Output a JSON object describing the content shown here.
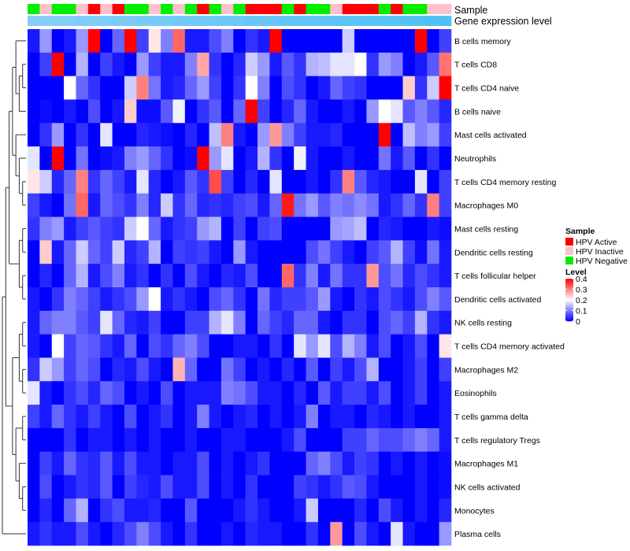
{
  "chart_data": {
    "type": "heatmap",
    "title": "",
    "annotation_labels": [
      "Sample",
      "Gene expression level"
    ],
    "rows": [
      "B cells memory",
      "T cells CD8",
      "T cells CD4 naive",
      "B cells naive",
      "Mast cells activated",
      "Neutrophils",
      "T cells CD4 memory resting",
      "Macrophages M0",
      "Mast cells resting",
      "Dendritic cells resting",
      "T cells follicular helper",
      "Dendritic cells activated",
      "NK cells resting",
      "T cells CD4 memory activated",
      "Macrophages M2",
      "Eosinophils",
      "T cells gamma delta",
      "T cells regulatory  Tregs",
      "Macrophages M1",
      "NK cells activated",
      "Monocytes",
      "Plasma cells"
    ],
    "sample_groups": [
      "Neg",
      "Ina",
      "Neg",
      "Neg",
      "Ina",
      "Act",
      "Ina",
      "Act",
      "Neg",
      "Neg",
      "Ina",
      "Neg",
      "Ina",
      "Neg",
      "Act",
      "Neg",
      "Ina",
      "Neg",
      "Act",
      "Act",
      "Act",
      "Neg",
      "Act",
      "Neg",
      "Neg",
      "Ina",
      "Act",
      "Act",
      "Act",
      "Neg",
      "Act",
      "Neg",
      "Neg",
      "Ina",
      "Ina"
    ],
    "values": [
      [
        0.02,
        0.12,
        0.0,
        0.02,
        0.12,
        0.41,
        0.0,
        0.08,
        0.44,
        0.05,
        0.22,
        0.1,
        0.32,
        0.02,
        0.02,
        0.06,
        0.1,
        0.0,
        0.04,
        0.02,
        0.42,
        0.0,
        0.0,
        0.0,
        0.0,
        0.0,
        0.16,
        0.0,
        0.0,
        0.0,
        0.0,
        0.0,
        0.4,
        0.0,
        0.05
      ],
      [
        0.0,
        0.05,
        0.41,
        0.0,
        0.14,
        0.0,
        0.05,
        0.02,
        0.0,
        0.12,
        0.05,
        0.02,
        0.02,
        0.1,
        0.27,
        0.04,
        0.0,
        0.03,
        0.16,
        0.12,
        0.02,
        0.07,
        0.04,
        0.14,
        0.15,
        0.18,
        0.18,
        0.2,
        0.04,
        0.12,
        0.1,
        0.0,
        0.02,
        0.07,
        0.31
      ],
      [
        0.0,
        0.0,
        0.0,
        0.2,
        0.08,
        0.04,
        0.0,
        0.0,
        0.16,
        0.3,
        0.09,
        0.02,
        0.03,
        0.08,
        0.12,
        0.05,
        0.0,
        0.04,
        0.2,
        0.1,
        0.0,
        0.06,
        0.04,
        0.0,
        0.02,
        0.08,
        0.05,
        0.04,
        0.0,
        0.0,
        0.0,
        0.24,
        0.04,
        0.16,
        0.41
      ],
      [
        0.0,
        0.01,
        0.0,
        0.02,
        0.0,
        0.06,
        0.0,
        0.02,
        0.24,
        0.01,
        0.01,
        0.07,
        0.19,
        0.0,
        0.04,
        0.07,
        0.0,
        0.08,
        0.4,
        0.05,
        0.0,
        0.03,
        0.08,
        0.02,
        0.0,
        0.0,
        0.02,
        0.0,
        0.12,
        0.2,
        0.18,
        0.07,
        0.1,
        0.07,
        0.03
      ],
      [
        0.0,
        0.04,
        0.12,
        0.0,
        0.04,
        0.0,
        0.18,
        0.0,
        0.0,
        0.03,
        0.02,
        0.01,
        0.0,
        0.03,
        0.0,
        0.15,
        0.3,
        0.02,
        0.0,
        0.12,
        0.28,
        0.1,
        0.05,
        0.02,
        0.02,
        0.03,
        0.0,
        0.0,
        0.0,
        0.41,
        0.0,
        0.15,
        0.1,
        0.12,
        0.05
      ],
      [
        0.18,
        0.0,
        0.41,
        0.0,
        0.09,
        0.0,
        0.01,
        0.02,
        0.1,
        0.12,
        0.08,
        0.04,
        0.0,
        0.01,
        0.4,
        0.12,
        0.18,
        0.0,
        0.02,
        0.14,
        0.04,
        0.0,
        0.19,
        0.02,
        0.0,
        0.0,
        0.02,
        0.0,
        0.0,
        0.09,
        0.02,
        0.07,
        0.0,
        0.04,
        0.0
      ],
      [
        0.22,
        0.16,
        0.03,
        0.08,
        0.3,
        0.04,
        0.08,
        0.05,
        0.02,
        0.18,
        0.03,
        0.0,
        0.02,
        0.07,
        0.04,
        0.34,
        0.05,
        0.0,
        0.03,
        0.0,
        0.18,
        0.0,
        0.0,
        0.02,
        0.0,
        0.04,
        0.3,
        0.07,
        0.03,
        0.02,
        0.0,
        0.0,
        0.18,
        0.0,
        0.05
      ],
      [
        0.05,
        0.02,
        0.0,
        0.09,
        0.32,
        0.02,
        0.08,
        0.06,
        0.04,
        0.1,
        0.03,
        0.16,
        0.04,
        0.08,
        0.03,
        0.04,
        0.03,
        0.05,
        0.06,
        0.02,
        0.08,
        0.38,
        0.09,
        0.12,
        0.07,
        0.1,
        0.09,
        0.11,
        0.09,
        0.02,
        0.04,
        0.08,
        0.04,
        0.3,
        0.05
      ],
      [
        0.04,
        0.1,
        0.12,
        0.02,
        0.05,
        0.07,
        0.05,
        0.04,
        0.16,
        0.2,
        0.08,
        0.02,
        0.04,
        0.05,
        0.12,
        0.14,
        0.0,
        0.05,
        0.0,
        0.05,
        0.06,
        0.0,
        0.0,
        0.0,
        0.0,
        0.12,
        0.13,
        0.15,
        0.0,
        0.03,
        0.02,
        0.0,
        0.0,
        0.02,
        0.01
      ],
      [
        0.0,
        0.24,
        0.02,
        0.08,
        0.16,
        0.08,
        0.05,
        0.16,
        0.03,
        0.05,
        0.14,
        0.0,
        0.05,
        0.04,
        0.05,
        0.02,
        0.0,
        0.12,
        0.02,
        0.0,
        0.0,
        0.0,
        0.0,
        0.06,
        0.09,
        0.05,
        0.02,
        0.0,
        0.05,
        0.07,
        0.14,
        0.05,
        0.01,
        0.09,
        0.02
      ],
      [
        0.0,
        0.03,
        0.0,
        0.08,
        0.14,
        0.02,
        0.06,
        0.1,
        0.02,
        0.04,
        0.0,
        0.04,
        0.0,
        0.06,
        0.02,
        0.0,
        0.03,
        0.02,
        0.06,
        0.0,
        0.0,
        0.32,
        0.04,
        0.1,
        0.02,
        0.09,
        0.04,
        0.04,
        0.28,
        0.06,
        0.09,
        0.03,
        0.06,
        0.04,
        0.02
      ],
      [
        0.02,
        0.0,
        0.04,
        0.1,
        0.08,
        0.05,
        0.02,
        0.04,
        0.06,
        0.12,
        0.2,
        0.02,
        0.04,
        0.02,
        0.0,
        0.06,
        0.08,
        0.04,
        0.0,
        0.09,
        0.03,
        0.05,
        0.05,
        0.07,
        0.12,
        0.02,
        0.0,
        0.04,
        0.02,
        0.06,
        0.04,
        0.02,
        0.06,
        0.1,
        0.07
      ],
      [
        0.02,
        0.08,
        0.1,
        0.1,
        0.07,
        0.05,
        0.18,
        0.08,
        0.03,
        0.02,
        0.05,
        0.0,
        0.0,
        0.05,
        0.05,
        0.14,
        0.18,
        0.1,
        0.0,
        0.08,
        0.05,
        0.03,
        0.08,
        0.08,
        0.02,
        0.0,
        0.04,
        0.04,
        0.0,
        0.06,
        0.08,
        0.05,
        0.14,
        0.04,
        0.02
      ],
      [
        0.02,
        0.0,
        0.2,
        0.05,
        0.08,
        0.07,
        0.04,
        0.02,
        0.08,
        0.0,
        0.06,
        0.04,
        0.08,
        0.1,
        0.06,
        0.0,
        0.0,
        0.02,
        0.02,
        0.0,
        0.04,
        0.0,
        0.18,
        0.12,
        0.18,
        0.06,
        0.14,
        0.1,
        0.02,
        0.06,
        0.0,
        0.02,
        0.06,
        0.0,
        0.22
      ],
      [
        0.04,
        0.16,
        0.12,
        0.05,
        0.08,
        0.06,
        0.0,
        0.03,
        0.02,
        0.06,
        0.02,
        0.0,
        0.26,
        0.08,
        0.0,
        0.0,
        0.09,
        0.05,
        0.0,
        0.02,
        0.0,
        0.03,
        0.0,
        0.07,
        0.0,
        0.05,
        0.02,
        0.06,
        0.14,
        0.0,
        0.0,
        0.02,
        0.05,
        0.0,
        0.05
      ],
      [
        0.18,
        0.02,
        0.0,
        0.04,
        0.06,
        0.03,
        0.08,
        0.06,
        0.0,
        0.02,
        0.0,
        0.06,
        0.0,
        0.02,
        0.02,
        0.02,
        0.1,
        0.09,
        0.06,
        0.02,
        0.02,
        0.0,
        0.03,
        0.0,
        0.07,
        0.02,
        0.05,
        0.05,
        0.02,
        0.06,
        0.0,
        0.02,
        0.05,
        0.0,
        0.02
      ],
      [
        0.05,
        0.02,
        0.08,
        0.04,
        0.02,
        0.05,
        0.02,
        0.0,
        0.06,
        0.0,
        0.02,
        0.04,
        0.0,
        0.02,
        0.1,
        0.02,
        0.0,
        0.02,
        0.03,
        0.0,
        0.02,
        0.0,
        0.02,
        0.1,
        0.0,
        0.02,
        0.02,
        0.0,
        0.03,
        0.02,
        0.0,
        0.02,
        0.0,
        0.0,
        0.02
      ],
      [
        0.0,
        0.0,
        0.0,
        0.04,
        0.0,
        0.02,
        0.02,
        0.0,
        0.02,
        0.0,
        0.02,
        0.0,
        0.0,
        0.02,
        0.0,
        0.0,
        0.02,
        0.02,
        0.0,
        0.0,
        0.0,
        0.02,
        0.06,
        0.0,
        0.0,
        0.0,
        0.05,
        0.05,
        0.08,
        0.06,
        0.06,
        0.08,
        0.1,
        0.08,
        0.02
      ],
      [
        0.0,
        0.05,
        0.02,
        0.08,
        0.04,
        0.03,
        0.07,
        0.02,
        0.06,
        0.02,
        0.02,
        0.0,
        0.02,
        0.02,
        0.06,
        0.0,
        0.02,
        0.0,
        0.02,
        0.04,
        0.0,
        0.0,
        0.0,
        0.08,
        0.1,
        0.06,
        0.02,
        0.05,
        0.04,
        0.0,
        0.02,
        0.0,
        0.02,
        0.0,
        0.01
      ],
      [
        0.0,
        0.06,
        0.0,
        0.02,
        0.04,
        0.03,
        0.07,
        0.0,
        0.05,
        0.03,
        0.02,
        0.06,
        0.02,
        0.02,
        0.06,
        0.0,
        0.02,
        0.0,
        0.04,
        0.0,
        0.0,
        0.0,
        0.05,
        0.04,
        0.02,
        0.04,
        0.07,
        0.06,
        0.02,
        0.0,
        0.0,
        0.0,
        0.02,
        0.0,
        0.01
      ],
      [
        0.0,
        0.03,
        0.0,
        0.08,
        0.14,
        0.0,
        0.04,
        0.06,
        0.02,
        0.02,
        0.03,
        0.0,
        0.0,
        0.07,
        0.0,
        0.0,
        0.0,
        0.02,
        0.04,
        0.02,
        0.0,
        0.0,
        0.02,
        0.16,
        0.0,
        0.0,
        0.0,
        0.03,
        0.0,
        0.06,
        0.02,
        0.0,
        0.02,
        0.0,
        0.03
      ],
      [
        0.02,
        0.04,
        0.02,
        0.02,
        0.06,
        0.02,
        0.0,
        0.03,
        0.06,
        0.1,
        0.06,
        0.02,
        0.0,
        0.04,
        0.0,
        0.0,
        0.02,
        0.0,
        0.03,
        0.02,
        0.02,
        0.0,
        0.0,
        0.04,
        0.0,
        0.28,
        0.0,
        0.06,
        0.02,
        0.0,
        0.18,
        0.02,
        0.0,
        0.0,
        0.12
      ]
    ],
    "annotation2_colors": [
      "#87cefa",
      "#4fc1f5"
    ],
    "legend": {
      "sample_title": "Sample",
      "sample_entries": [
        {
          "key": "Act",
          "label": "HPV Active",
          "color": "#ff0000"
        },
        {
          "key": "Ina",
          "label": "HPV Inactive",
          "color": "#ffc0cb"
        },
        {
          "key": "Neg",
          "label": "HPV Negative",
          "color": "#00ee00"
        }
      ],
      "level_title": "Level",
      "level_ticks": [
        "0.4",
        "0.3",
        "0.2",
        "0.1",
        "0"
      ],
      "level_min": 0,
      "level_max": 0.4,
      "color_low": "#0000ff",
      "color_mid": "#ffffff",
      "color_high": "#ff0000"
    }
  }
}
